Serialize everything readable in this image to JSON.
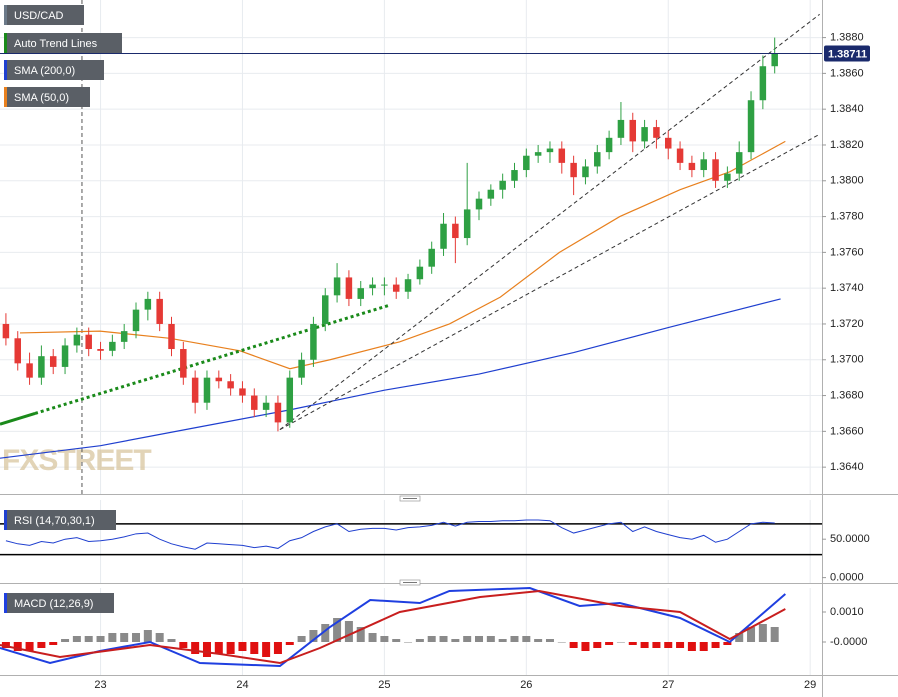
{
  "chart_data": {
    "type": "candlestick",
    "name": "USD/CAD",
    "up_color": "#2ea043",
    "down_color": "#e53935",
    "xlim": [
      -0.5,
      69
    ],
    "xticks": [
      {
        "value": 8,
        "label": "23"
      },
      {
        "value": 20,
        "label": "24"
      },
      {
        "value": 32,
        "label": "25"
      },
      {
        "value": 44,
        "label": "26"
      },
      {
        "value": 56,
        "label": "27"
      },
      {
        "value": 68,
        "label": "29"
      }
    ],
    "ylim": [
      1.3625,
      1.3901
    ],
    "yticks": [
      {
        "value": 1.364,
        "label": "1.3640"
      },
      {
        "value": 1.366,
        "label": "1.3660"
      },
      {
        "value": 1.368,
        "label": "1.3680"
      },
      {
        "value": 1.37,
        "label": "1.3700"
      },
      {
        "value": 1.372,
        "label": "1.3720"
      },
      {
        "value": 1.374,
        "label": "1.3740"
      },
      {
        "value": 1.376,
        "label": "1.3760"
      },
      {
        "value": 1.378,
        "label": "1.3780"
      },
      {
        "value": 1.38,
        "label": "1.3800"
      },
      {
        "value": 1.382,
        "label": "1.3820"
      },
      {
        "value": 1.384,
        "label": "1.3840"
      },
      {
        "value": 1.386,
        "label": "1.3860"
      },
      {
        "value": 1.388,
        "label": "1.3880"
      }
    ],
    "grid": true,
    "watermark": "FXSTREET",
    "last_price": {
      "value": 1.38711,
      "label": "1.38711"
    },
    "event_line_x": 6.43,
    "ohlc": [
      [
        1.372,
        1.3726,
        1.3708,
        1.3712
      ],
      [
        1.3712,
        1.3716,
        1.3694,
        1.3698
      ],
      [
        1.3698,
        1.3704,
        1.3686,
        1.369
      ],
      [
        1.369,
        1.3708,
        1.3686,
        1.3702
      ],
      [
        1.3702,
        1.3706,
        1.3692,
        1.3696
      ],
      [
        1.3696,
        1.3712,
        1.3692,
        1.3708
      ],
      [
        1.3708,
        1.3718,
        1.3704,
        1.3714
      ],
      [
        1.3714,
        1.3718,
        1.3702,
        1.3706
      ],
      [
        1.3706,
        1.371,
        1.37,
        1.3705
      ],
      [
        1.3705,
        1.3714,
        1.3702,
        1.371
      ],
      [
        1.371,
        1.372,
        1.3706,
        1.3716
      ],
      [
        1.3716,
        1.3732,
        1.3712,
        1.3728
      ],
      [
        1.3728,
        1.3738,
        1.3722,
        1.3734
      ],
      [
        1.3734,
        1.3738,
        1.3716,
        1.372
      ],
      [
        1.372,
        1.3724,
        1.3702,
        1.3706
      ],
      [
        1.3706,
        1.371,
        1.3686,
        1.369
      ],
      [
        1.369,
        1.3694,
        1.367,
        1.3676
      ],
      [
        1.3676,
        1.3694,
        1.3672,
        1.369
      ],
      [
        1.369,
        1.3694,
        1.3684,
        1.3688
      ],
      [
        1.3688,
        1.3692,
        1.368,
        1.3684
      ],
      [
        1.3684,
        1.3688,
        1.3676,
        1.368
      ],
      [
        1.368,
        1.3684,
        1.3668,
        1.3672
      ],
      [
        1.3672,
        1.368,
        1.3668,
        1.3676
      ],
      [
        1.3676,
        1.368,
        1.366,
        1.3665
      ],
      [
        1.3665,
        1.3694,
        1.3662,
        1.369
      ],
      [
        1.369,
        1.3704,
        1.3686,
        1.37
      ],
      [
        1.37,
        1.3724,
        1.3696,
        1.372
      ],
      [
        1.372,
        1.374,
        1.3716,
        1.3736
      ],
      [
        1.3736,
        1.3754,
        1.3732,
        1.3746
      ],
      [
        1.3746,
        1.375,
        1.373,
        1.3734
      ],
      [
        1.3734,
        1.3744,
        1.373,
        1.374
      ],
      [
        1.374,
        1.3746,
        1.3736,
        1.3742
      ],
      [
        1.3742,
        1.3746,
        1.3736,
        1.3742
      ],
      [
        1.3742,
        1.3746,
        1.3734,
        1.3738
      ],
      [
        1.3738,
        1.3748,
        1.3734,
        1.3745
      ],
      [
        1.3745,
        1.3756,
        1.3742,
        1.3752
      ],
      [
        1.3752,
        1.3766,
        1.3748,
        1.3762
      ],
      [
        1.3762,
        1.3782,
        1.3758,
        1.3776
      ],
      [
        1.3776,
        1.378,
        1.3754,
        1.3768
      ],
      [
        1.3768,
        1.381,
        1.3764,
        1.3784
      ],
      [
        1.3784,
        1.3794,
        1.3778,
        1.379
      ],
      [
        1.379,
        1.3798,
        1.3786,
        1.3795
      ],
      [
        1.3795,
        1.3804,
        1.379,
        1.38
      ],
      [
        1.38,
        1.381,
        1.3796,
        1.3806
      ],
      [
        1.3806,
        1.3818,
        1.3802,
        1.3814
      ],
      [
        1.3814,
        1.382,
        1.381,
        1.3816
      ],
      [
        1.3816,
        1.3822,
        1.381,
        1.3818
      ],
      [
        1.3818,
        1.3822,
        1.3804,
        1.381
      ],
      [
        1.381,
        1.3814,
        1.3792,
        1.3802
      ],
      [
        1.3802,
        1.3812,
        1.3798,
        1.3808
      ],
      [
        1.3808,
        1.382,
        1.3804,
        1.3816
      ],
      [
        1.3816,
        1.3828,
        1.3812,
        1.3824
      ],
      [
        1.3824,
        1.3844,
        1.382,
        1.3834
      ],
      [
        1.3834,
        1.3838,
        1.3816,
        1.3822
      ],
      [
        1.3822,
        1.3834,
        1.3818,
        1.383
      ],
      [
        1.383,
        1.3834,
        1.3818,
        1.3824
      ],
      [
        1.3824,
        1.3828,
        1.3812,
        1.3818
      ],
      [
        1.3818,
        1.3822,
        1.3806,
        1.381
      ],
      [
        1.381,
        1.3814,
        1.3802,
        1.3806
      ],
      [
        1.3806,
        1.3816,
        1.3802,
        1.3812
      ],
      [
        1.3812,
        1.3816,
        1.3796,
        1.38
      ],
      [
        1.38,
        1.3808,
        1.3796,
        1.3804
      ],
      [
        1.3804,
        1.3822,
        1.38,
        1.3816
      ],
      [
        1.3816,
        1.385,
        1.3812,
        1.3845
      ],
      [
        1.3845,
        1.387,
        1.384,
        1.3864
      ],
      [
        1.3864,
        1.388,
        1.386,
        1.3871
      ]
    ],
    "trend_lines": {
      "name": "Auto Trend Lines",
      "lines": [
        {
          "color": "#1a8a1a",
          "style": "solid",
          "points": [
            [
              -0.5,
              1.3664
            ],
            [
              2.46,
              1.367
            ]
          ]
        },
        {
          "color": "#1a8a1a",
          "style": "dotted",
          "points": [
            [
              2.46,
              1.367
            ],
            [
              32.5,
              1.37306
            ]
          ]
        },
        {
          "color": "#333333",
          "style": "dashed",
          "points": [
            [
              23.17,
              1.3661
            ],
            [
              68.8,
              1.3893
            ]
          ]
        },
        {
          "color": "#333333",
          "style": "dashed",
          "points": [
            [
              23.17,
              1.3661
            ],
            [
              68.8,
              1.3826
            ]
          ]
        }
      ]
    },
    "series": [
      {
        "name": "SMA (200,0)",
        "color": "#1f3fcf",
        "x": [
          -0.5,
          8,
          16,
          24,
          32,
          40,
          48,
          56,
          65.5
        ],
        "values": [
          1.3645,
          1.3652,
          1.3662,
          1.3672,
          1.3683,
          1.3692,
          1.3704,
          1.3718,
          1.3734
        ]
      },
      {
        "name": "SMA (50,0)",
        "color": "#e8801e",
        "x": [
          1.19,
          7.95,
          13.87,
          19.79,
          24.01,
          27.4,
          33.3,
          37.5,
          41.8,
          46.8,
          51.9,
          57.0,
          61.2,
          65.9
        ],
        "values": [
          1.3715,
          1.3716,
          1.3712,
          1.3705,
          1.3695,
          1.37,
          1.371,
          1.372,
          1.3735,
          1.376,
          1.378,
          1.3795,
          1.3805,
          1.3822
        ]
      }
    ],
    "rsi": {
      "name": "RSI (14,70,30,1)",
      "color": "#1f3fcf",
      "ylim": [
        -7,
        101
      ],
      "yticks": [
        {
          "value": 50,
          "label": "50.0000"
        },
        {
          "value": 0,
          "label": "0.0000"
        }
      ],
      "levels": [
        70,
        30
      ],
      "values": [
        48,
        44,
        42,
        47,
        45,
        50,
        52,
        47,
        48,
        50,
        53,
        57,
        58,
        50,
        44,
        40,
        37,
        45,
        44,
        43,
        42,
        39,
        41,
        38,
        48,
        52,
        60,
        66,
        70,
        60,
        63,
        64,
        64,
        62,
        65,
        66,
        68,
        72,
        67,
        72,
        73,
        73,
        74,
        74,
        75,
        75,
        74,
        65,
        58,
        62,
        66,
        70,
        72,
        60,
        66,
        60,
        56,
        52,
        50,
        55,
        46,
        50,
        60,
        70,
        72,
        71
      ]
    },
    "macd": {
      "name": "MACD (12,26,9)",
      "ylim": [
        -0.0011,
        0.0018
      ],
      "yticks": [
        {
          "value": 0.001,
          "label": "0.0010"
        },
        {
          "value": 0,
          "label": "-0.0000"
        }
      ],
      "histogram": {
        "pos_color": "#8a8a8a",
        "neg_color": "#e01010",
        "values": [
          -0.0002,
          -0.0003,
          -0.0003,
          -0.0002,
          -0.0001,
          0.0001,
          0.0002,
          0.0002,
          0.0002,
          0.0003,
          0.0003,
          0.0003,
          0.0004,
          0.0003,
          0.0001,
          -0.0002,
          -0.0004,
          -0.0005,
          -0.0004,
          -0.0004,
          -0.0003,
          -0.0004,
          -0.0005,
          -0.0004,
          -0.0001,
          0.0002,
          0.0004,
          0.0006,
          0.0008,
          0.0007,
          0.0005,
          0.0003,
          0.0002,
          0.0001,
          0,
          0.0001,
          0.0002,
          0.0002,
          0.0001,
          0.0002,
          0.0002,
          0.0002,
          0.0001,
          0.0002,
          0.0002,
          0.0001,
          0.0001,
          0,
          -0.0002,
          -0.0003,
          -0.0002,
          -0.0001,
          0,
          -0.0001,
          -0.0002,
          -0.0002,
          -0.0002,
          -0.0002,
          -0.0003,
          -0.0003,
          -0.0002,
          -0.0001,
          0.0003,
          0.0005,
          0.0006,
          0.0005
        ]
      },
      "lines": [
        {
          "color": "#1f3fe0",
          "x": [
            -0.5,
            3.73,
            7.95,
            12.18,
            16.4,
            23.17,
            27.4,
            30.8,
            35.0,
            37.5,
            44.3,
            48.5,
            51.9,
            57.0,
            61.2,
            65.9
          ],
          "values": [
            -0.0002,
            -0.0007,
            -0.0003,
            0,
            -0.0007,
            -0.0008,
            0.0005,
            0.0014,
            0.0013,
            0.0017,
            0.0018,
            0.0012,
            0.0013,
            0.0008,
            0,
            0.0016
          ]
        },
        {
          "color": "#c81e1e",
          "x": [
            -0.5,
            4.57,
            12.18,
            18.1,
            23.17,
            26.55,
            33.3,
            40.1,
            45.1,
            51.9,
            57.0,
            61.2,
            65.9
          ],
          "values": [
            -0.0001,
            -0.0005,
            -0.0001,
            -0.0004,
            -0.0007,
            -0.0002,
            0.001,
            0.0015,
            0.0017,
            0.0012,
            0.001,
            0.0001,
            0.0011
          ]
        }
      ]
    }
  }
}
